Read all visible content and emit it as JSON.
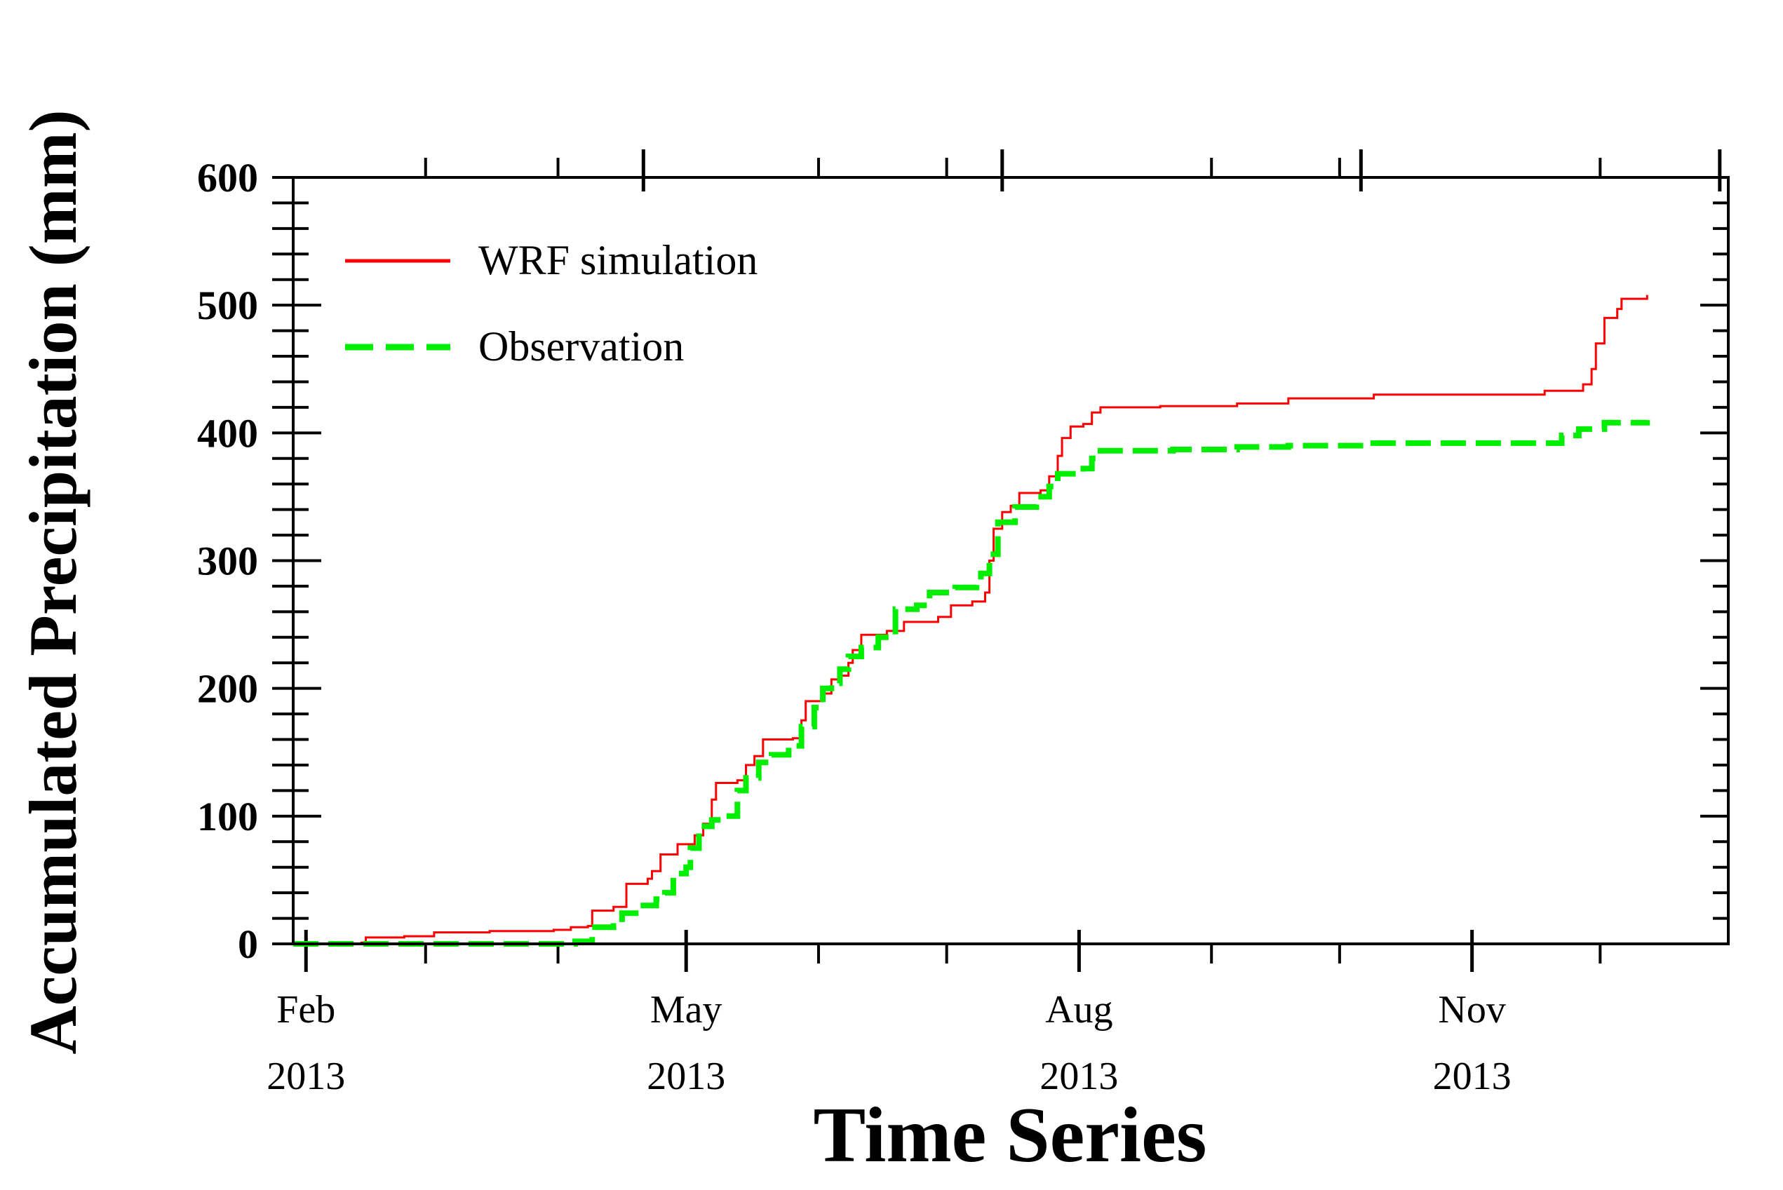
{
  "chart_data": {
    "type": "line",
    "title": "",
    "xlabel": "Time Series",
    "ylabel": "Accumulated Precipitation (mm)",
    "ylim": [
      0,
      600
    ],
    "y_major_ticks": [
      0,
      100,
      200,
      300,
      400,
      500,
      600
    ],
    "y_minor_step": 20,
    "x_unit": "day of year 2013",
    "xlim": [
      29,
      365
    ],
    "x_major_ticks": [
      {
        "day": 32,
        "month": "Feb",
        "year": "2013"
      },
      {
        "day": 121,
        "month": "May",
        "year": "2013"
      },
      {
        "day": 213,
        "month": "Aug",
        "year": "2013"
      },
      {
        "day": 305,
        "month": "Nov",
        "year": "2013"
      }
    ],
    "x_top_major_ticks": [
      111,
      195,
      279,
      363
    ],
    "x_minor_ticks": [
      60,
      91,
      152,
      182,
      244,
      274,
      335
    ],
    "legend": {
      "location": "top-left",
      "entries": [
        {
          "label": "WRF simulation",
          "series": "WRF simulation"
        },
        {
          "label": "Observation",
          "series": "Observation"
        }
      ]
    },
    "series": [
      {
        "name": "WRF simulation",
        "color": "#ff0000",
        "style": "solid",
        "points": [
          [
            29,
            0
          ],
          [
            45,
            1
          ],
          [
            46,
            5
          ],
          [
            55,
            6
          ],
          [
            62,
            9
          ],
          [
            75,
            10
          ],
          [
            90,
            11
          ],
          [
            94,
            13
          ],
          [
            98,
            14
          ],
          [
            99,
            26
          ],
          [
            103,
            26
          ],
          [
            104,
            29
          ],
          [
            107,
            47
          ],
          [
            112,
            51
          ],
          [
            113,
            57
          ],
          [
            115,
            70
          ],
          [
            119,
            78
          ],
          [
            123,
            85
          ],
          [
            125,
            94
          ],
          [
            127,
            113
          ],
          [
            128,
            126
          ],
          [
            133,
            128
          ],
          [
            135,
            140
          ],
          [
            137,
            147
          ],
          [
            139,
            160
          ],
          [
            146,
            161
          ],
          [
            148,
            175
          ],
          [
            149,
            190
          ],
          [
            153,
            196
          ],
          [
            155,
            207
          ],
          [
            157,
            210
          ],
          [
            159,
            220
          ],
          [
            160,
            230
          ],
          [
            162,
            242
          ],
          [
            168,
            245
          ],
          [
            172,
            252
          ],
          [
            180,
            256
          ],
          [
            183,
            265
          ],
          [
            188,
            268
          ],
          [
            191,
            275
          ],
          [
            192,
            300
          ],
          [
            193,
            325
          ],
          [
            195,
            338
          ],
          [
            197,
            343
          ],
          [
            199,
            353
          ],
          [
            204,
            355
          ],
          [
            206,
            366
          ],
          [
            208,
            382
          ],
          [
            209,
            396
          ],
          [
            211,
            405
          ],
          [
            214,
            407
          ],
          [
            216,
            416
          ],
          [
            218,
            420
          ],
          [
            232,
            421
          ],
          [
            250,
            423
          ],
          [
            262,
            427
          ],
          [
            282,
            430
          ],
          [
            322,
            433
          ],
          [
            331,
            438
          ],
          [
            333,
            450
          ],
          [
            334,
            470
          ],
          [
            336,
            490
          ],
          [
            339,
            497
          ],
          [
            340,
            505
          ],
          [
            346,
            508
          ]
        ]
      },
      {
        "name": "Observation",
        "color": "#00ee00",
        "style": "dashed",
        "points": [
          [
            29,
            0
          ],
          [
            95,
            2
          ],
          [
            99,
            13
          ],
          [
            104,
            14
          ],
          [
            106,
            24
          ],
          [
            111,
            30
          ],
          [
            114,
            35
          ],
          [
            116,
            40
          ],
          [
            118,
            55
          ],
          [
            121,
            60
          ],
          [
            122,
            75
          ],
          [
            124,
            92
          ],
          [
            127,
            97
          ],
          [
            130,
            100
          ],
          [
            133,
            120
          ],
          [
            135,
            130
          ],
          [
            138,
            142
          ],
          [
            141,
            148
          ],
          [
            145,
            155
          ],
          [
            148,
            170
          ],
          [
            151,
            185
          ],
          [
            153,
            200
          ],
          [
            155,
            204
          ],
          [
            157,
            215
          ],
          [
            159,
            225
          ],
          [
            162,
            232
          ],
          [
            166,
            240
          ],
          [
            170,
            262
          ],
          [
            175,
            265
          ],
          [
            178,
            275
          ],
          [
            184,
            279
          ],
          [
            189,
            281
          ],
          [
            190,
            290
          ],
          [
            192,
            305
          ],
          [
            194,
            330
          ],
          [
            198,
            342
          ],
          [
            203,
            350
          ],
          [
            206,
            358
          ],
          [
            208,
            368
          ],
          [
            214,
            372
          ],
          [
            216,
            380
          ],
          [
            218,
            386
          ],
          [
            235,
            387
          ],
          [
            250,
            389
          ],
          [
            262,
            390
          ],
          [
            280,
            392
          ],
          [
            322,
            392
          ],
          [
            326,
            398
          ],
          [
            330,
            403
          ],
          [
            336,
            408
          ],
          [
            346,
            410
          ]
        ]
      }
    ]
  }
}
